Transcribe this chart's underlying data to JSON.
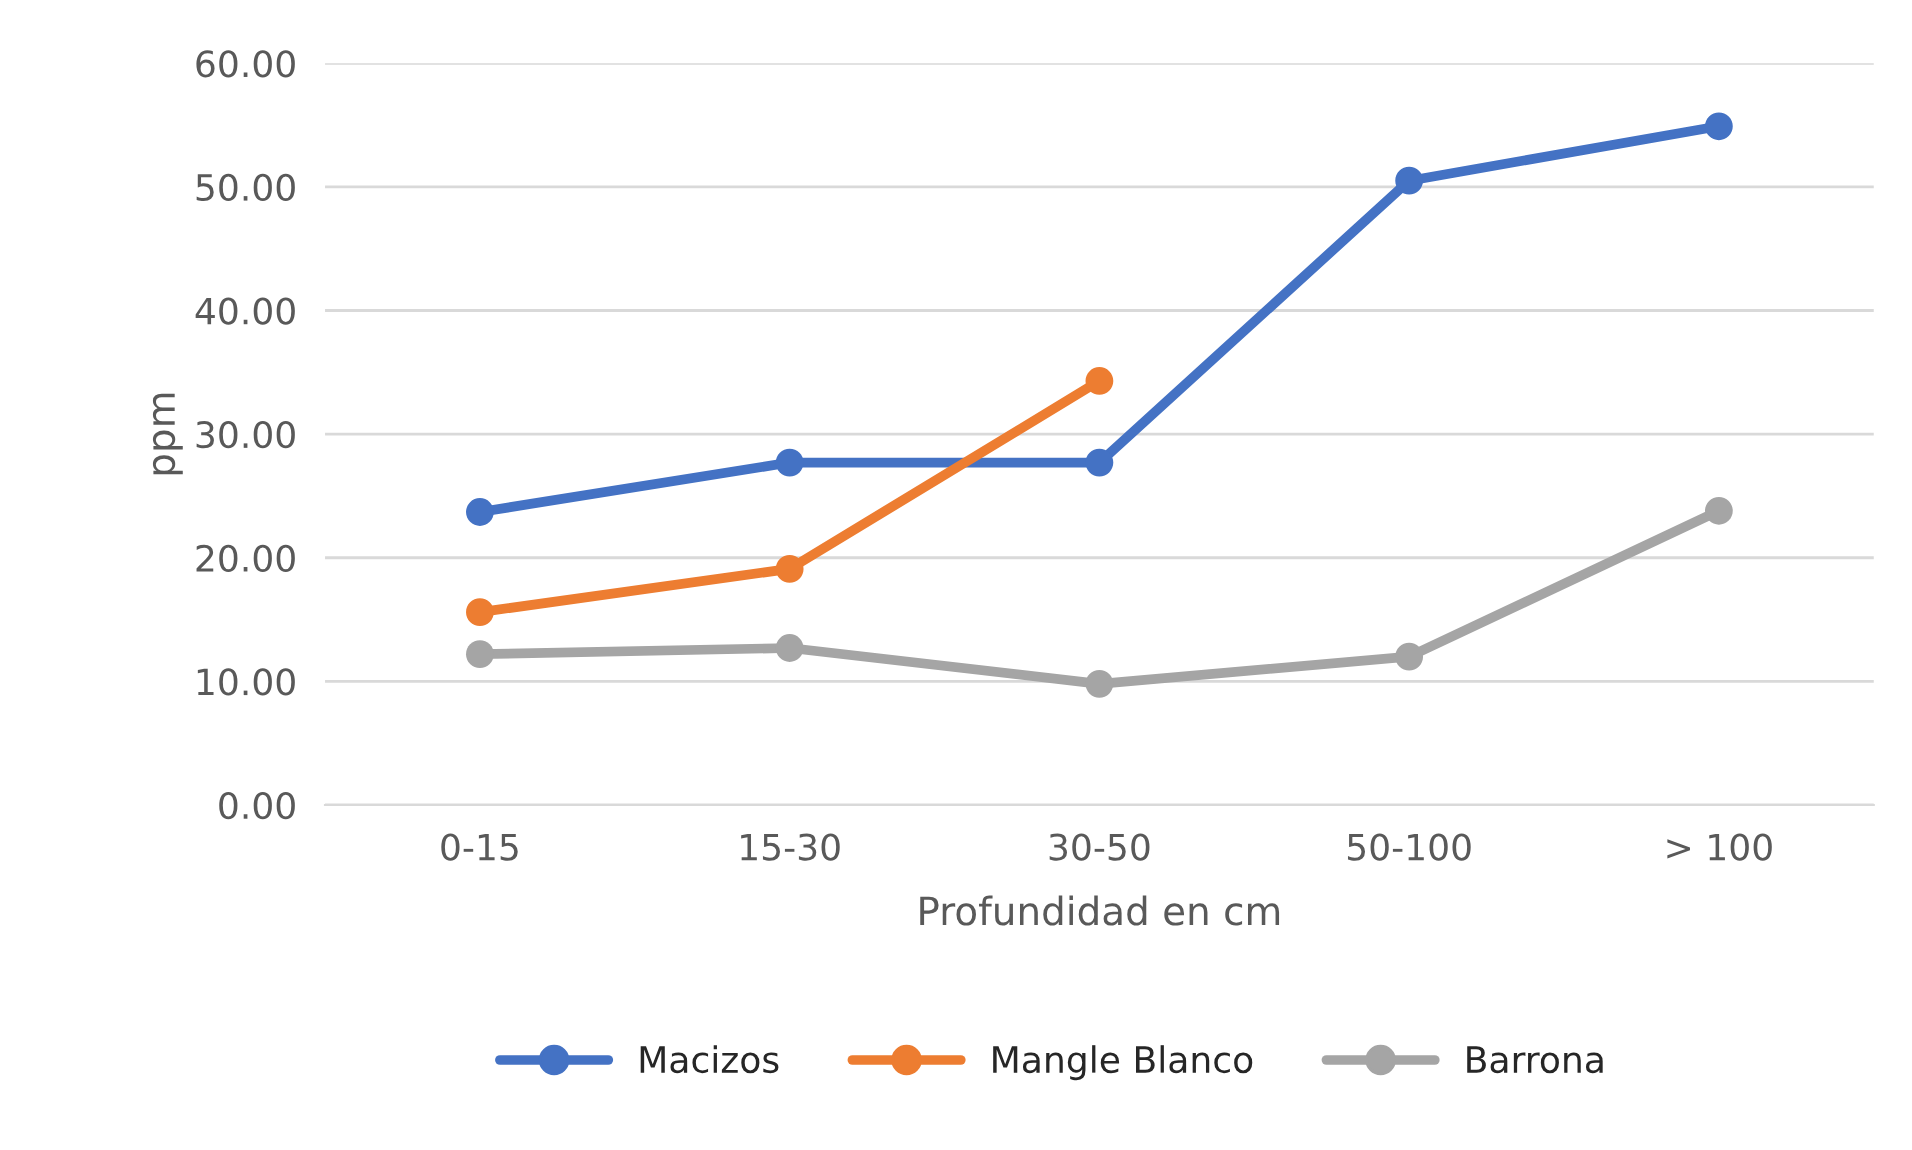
{
  "chart_data": {
    "type": "line",
    "xlabel": "Profundidad en cm",
    "ylabel": "ppm",
    "categories": [
      "0-15",
      "15-30",
      "30-50",
      "50-100",
      "> 100"
    ],
    "series": [
      {
        "name": "Macizos",
        "color": "#4472c4",
        "values": [
          23.7,
          27.7,
          27.7,
          50.5,
          54.9
        ]
      },
      {
        "name": "Mangle Blanco",
        "color": "#ed7d31",
        "values": [
          15.6,
          19.1,
          34.3,
          null,
          null
        ]
      },
      {
        "name": "Barrona",
        "color": "#a5a5a5",
        "values": [
          12.2,
          12.7,
          9.8,
          12.0,
          23.8
        ]
      }
    ],
    "ylim": [
      0,
      60
    ],
    "yticks": [
      {
        "value": 0,
        "label": "0.00"
      },
      {
        "value": 10,
        "label": "10.00"
      },
      {
        "value": 20,
        "label": "20.00"
      },
      {
        "value": 30,
        "label": "30.00"
      },
      {
        "value": 40,
        "label": "40.00"
      },
      {
        "value": 50,
        "label": "50.00"
      },
      {
        "value": 60,
        "label": "60.00"
      }
    ],
    "grid": "y",
    "legend": "bottom",
    "marker": "circle",
    "line_style": "solid"
  }
}
